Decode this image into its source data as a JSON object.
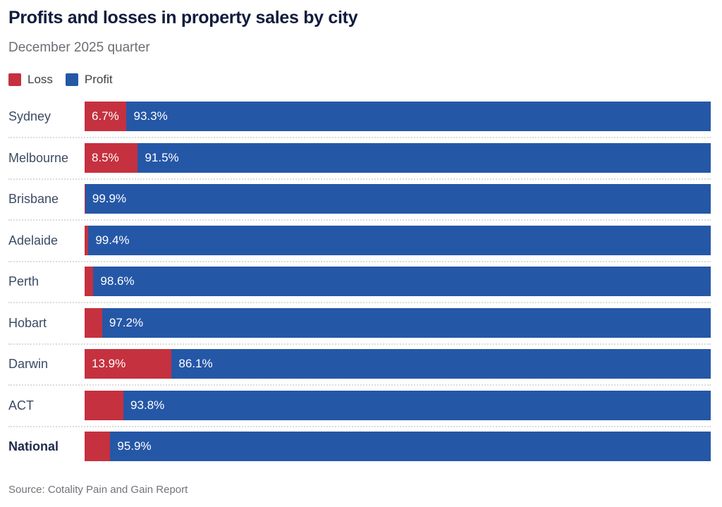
{
  "header": {
    "title": "Profits and losses in property sales by city",
    "subtitle": "December 2025 quarter"
  },
  "legend": [
    {
      "label": "Loss",
      "color": "#c5313f"
    },
    {
      "label": "Profit",
      "color": "#2557a7"
    }
  ],
  "chart_data": {
    "type": "bar",
    "orientation": "horizontal",
    "stacked": true,
    "unit": "%",
    "xlim": [
      0,
      100
    ],
    "grid": false,
    "legend_position": "top-left",
    "title": "Profits and losses in property sales by city",
    "subtitle": "December 2025 quarter",
    "categories": [
      "Sydney",
      "Melbourne",
      "Brisbane",
      "Adelaide",
      "Perth",
      "Hobart",
      "Darwin",
      "ACT",
      "National"
    ],
    "series": [
      {
        "name": "Loss",
        "color": "#c5313f",
        "values": [
          6.7,
          8.5,
          0.1,
          0.6,
          1.4,
          2.8,
          13.9,
          6.2,
          4.1
        ]
      },
      {
        "name": "Profit",
        "color": "#2557a7",
        "values": [
          93.3,
          91.5,
          99.9,
          99.4,
          98.6,
          97.2,
          86.1,
          93.8,
          95.9
        ]
      }
    ],
    "rows": [
      {
        "label": "Sydney",
        "loss": 6.7,
        "profit": 93.3,
        "loss_label": "6.7%",
        "profit_label": "93.3%",
        "bold": false
      },
      {
        "label": "Melbourne",
        "loss": 8.5,
        "profit": 91.5,
        "loss_label": "8.5%",
        "profit_label": "91.5%",
        "bold": false
      },
      {
        "label": "Brisbane",
        "loss": 0.1,
        "profit": 99.9,
        "loss_label": "",
        "profit_label": "99.9%",
        "bold": false
      },
      {
        "label": "Adelaide",
        "loss": 0.6,
        "profit": 99.4,
        "loss_label": "",
        "profit_label": "99.4%",
        "bold": false
      },
      {
        "label": "Perth",
        "loss": 1.4,
        "profit": 98.6,
        "loss_label": "",
        "profit_label": "98.6%",
        "bold": false
      },
      {
        "label": "Hobart",
        "loss": 2.8,
        "profit": 97.2,
        "loss_label": "",
        "profit_label": "97.2%",
        "bold": false
      },
      {
        "label": "Darwin",
        "loss": 13.9,
        "profit": 86.1,
        "loss_label": "13.9%",
        "profit_label": "86.1%",
        "bold": false
      },
      {
        "label": "ACT",
        "loss": 6.2,
        "profit": 93.8,
        "loss_label": "",
        "profit_label": "93.8%",
        "bold": false
      },
      {
        "label": "National",
        "loss": 4.1,
        "profit": 95.9,
        "loss_label": "",
        "profit_label": "95.9%",
        "bold": true
      }
    ]
  },
  "footer": {
    "source": "Source: Cotality Pain and Gain Report"
  }
}
